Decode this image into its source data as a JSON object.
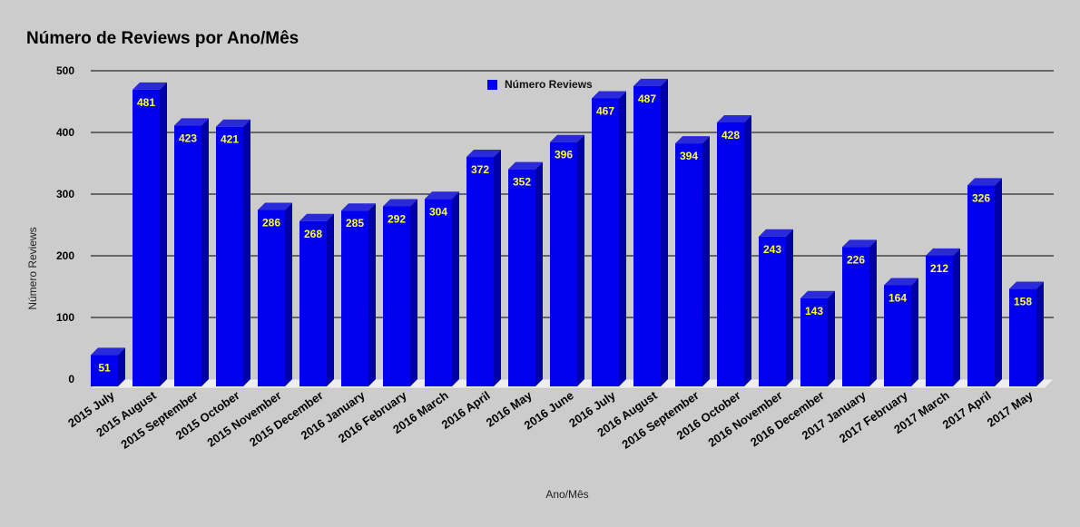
{
  "chart_data": {
    "type": "bar",
    "title": "Número de Reviews por Ano/Mês",
    "xlabel": "Ano/Mês",
    "ylabel": "Número Reviews",
    "ylim": [
      0,
      500
    ],
    "yticks": [
      "0",
      "100",
      "200",
      "300",
      "400",
      "500"
    ],
    "grid": true,
    "legend_position": "top-center",
    "categories": [
      "2015 July",
      "2015 August",
      "2015 September",
      "2015 October",
      "2015 November",
      "2015 December",
      "2016 January",
      "2016 February",
      "2016 March",
      "2016 April",
      "2016 May",
      "2016 June",
      "2016 July",
      "2016 August",
      "2016 September",
      "2016 October",
      "2016 November",
      "2016 December",
      "2017 January",
      "2017 February",
      "2017 March",
      "2017 April",
      "2017 May"
    ],
    "series": [
      {
        "name": "Número Reviews",
        "values": [
          51,
          481,
          423,
          421,
          286,
          268,
          285,
          292,
          304,
          372,
          352,
          396,
          467,
          487,
          394,
          428,
          243,
          143,
          226,
          164,
          212,
          326,
          158
        ]
      }
    ],
    "colors": {
      "bar_front": "#0000ee",
      "bar_top": "#2a2ad8",
      "bar_side": "#0000a8",
      "data_label": "#ffff33",
      "background": "#cccccc"
    }
  }
}
